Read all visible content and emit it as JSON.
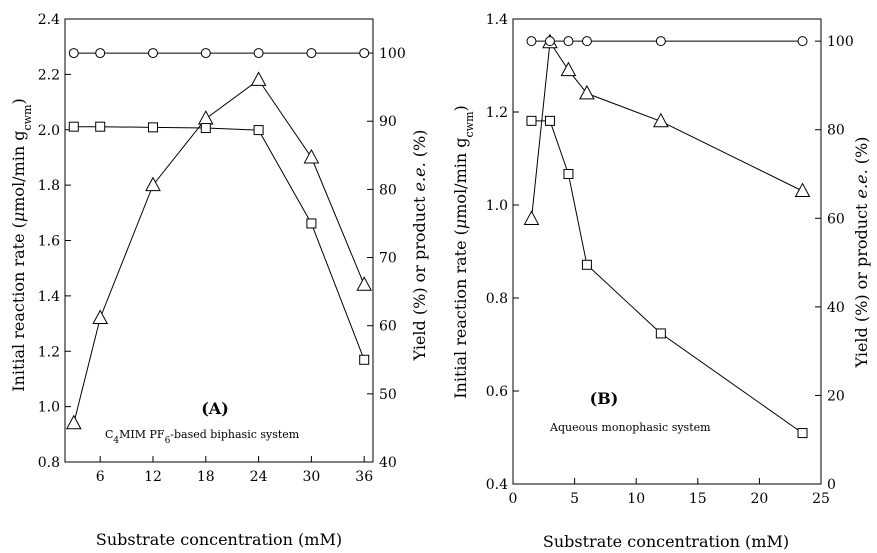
{
  "chart_data": [
    {
      "type": "line",
      "panel_label": "(A)",
      "annotation": "C4MIM PF6-based biphasic system",
      "xlabel": "Substrate concentration (mM)",
      "ylabel": "Initial reaction rate (μmol/min g_cwm)",
      "y2label": "Yield (%) or product e.e. (%)",
      "xlim": [
        2,
        37
      ],
      "ylim": [
        0.8,
        2.4
      ],
      "y2lim": [
        40,
        105
      ],
      "xticks": [
        "6",
        "12",
        "18",
        "24",
        "30",
        "36"
      ],
      "yticks": [
        "0.8",
        "1.0",
        "1.2",
        "1.4",
        "1.6",
        "1.8",
        "2.0",
        "2.2",
        "2.4"
      ],
      "y2ticks": [
        "40",
        "50",
        "60",
        "70",
        "80",
        "90",
        "100"
      ],
      "series": [
        {
          "marker": "triangle",
          "axis": "left",
          "x": [
            3,
            6,
            12,
            18,
            24,
            30,
            36
          ],
          "y": [
            0.94,
            1.32,
            1.8,
            2.04,
            2.18,
            1.9,
            1.44
          ]
        },
        {
          "marker": "square",
          "axis": "right",
          "x": [
            3,
            6,
            12,
            18,
            24,
            30,
            36
          ],
          "y": [
            89.2,
            89.2,
            89.1,
            89.0,
            88.7,
            75.0,
            55.0
          ]
        },
        {
          "marker": "circle",
          "axis": "right",
          "x": [
            3,
            6,
            12,
            18,
            24,
            30,
            36
          ],
          "y": [
            100,
            100,
            100,
            100,
            100,
            100,
            100
          ]
        }
      ]
    },
    {
      "type": "line",
      "panel_label": "(B)",
      "annotation": "Aqueous monophasic system",
      "xlabel": "Substrate concentration (mM)",
      "ylabel": "Initial reaction rate (μmol/min g_cwm)",
      "y2label": "Yield (%) or product e.e. (%)",
      "xlim": [
        0,
        25
      ],
      "ylim": [
        0.4,
        1.4
      ],
      "y2lim": [
        0,
        105
      ],
      "xticks": [
        "0",
        "5",
        "10",
        "15",
        "20",
        "25"
      ],
      "yticks": [
        "0.4",
        "0.6",
        "0.8",
        "1.0",
        "1.2",
        "1.4"
      ],
      "y2ticks": [
        "0",
        "20",
        "40",
        "60",
        "80",
        "100"
      ],
      "series": [
        {
          "marker": "triangle",
          "axis": "left",
          "x": [
            1.5,
            3,
            4.5,
            6,
            12,
            23.5
          ],
          "y": [
            0.97,
            1.35,
            1.29,
            1.24,
            1.18,
            1.03
          ]
        },
        {
          "marker": "square",
          "axis": "right",
          "x": [
            1.5,
            3,
            4.5,
            6,
            12,
            23.5
          ],
          "y": [
            82,
            82,
            70,
            49.5,
            34,
            11.5
          ]
        },
        {
          "marker": "circle",
          "axis": "right",
          "x": [
            1.5,
            3,
            4.5,
            6,
            12,
            23.5
          ],
          "y": [
            100,
            100,
            100,
            100,
            100,
            100
          ]
        }
      ]
    }
  ]
}
